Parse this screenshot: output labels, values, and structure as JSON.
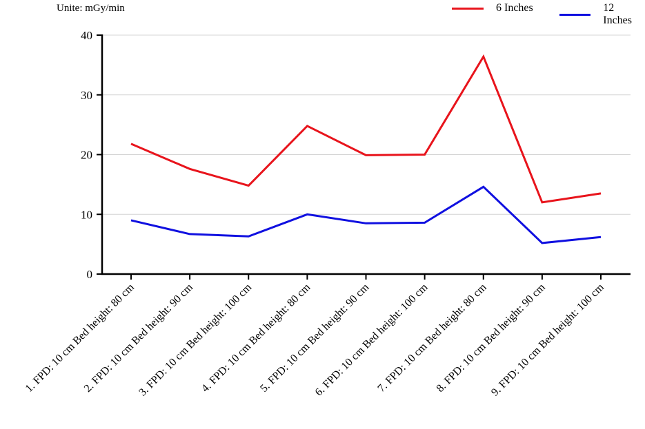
{
  "chart_data": {
    "type": "line",
    "title": "",
    "unit_note": "Unite: mGy/min",
    "xlabel": "",
    "ylabel": "",
    "ylim": [
      0,
      40
    ],
    "yticks": [
      0,
      10,
      20,
      30,
      40
    ],
    "grid": true,
    "legend_position": "top-right",
    "categories": [
      "1. FPD: 10 cm Bed height: 80 cm",
      "2. FPD: 10 cm Bed height: 90 cm",
      "3. FPD: 10 cm Bed height: 100 cm",
      "4. FPD: 10 cm Bed height: 80 cm",
      "5. FPD: 10 cm Bed height: 90 cm",
      "6. FPD: 10 cm Bed height: 100 cm",
      "7. FPD: 10 cm Bed height: 80 cm",
      "8. FPD: 10 cm Bed height: 90 cm",
      "9. FPD: 10 cm Bed height: 100 cm"
    ],
    "series": [
      {
        "name": "6 Inches",
        "color": "#e8141c",
        "values": [
          21.8,
          17.6,
          14.8,
          24.8,
          19.9,
          20.0,
          36.4,
          12.0,
          13.5
        ]
      },
      {
        "name": "12 Inches",
        "color": "#1010e0",
        "values": [
          9.0,
          6.7,
          6.3,
          10.0,
          8.5,
          8.6,
          14.6,
          5.2,
          6.2
        ]
      }
    ]
  }
}
